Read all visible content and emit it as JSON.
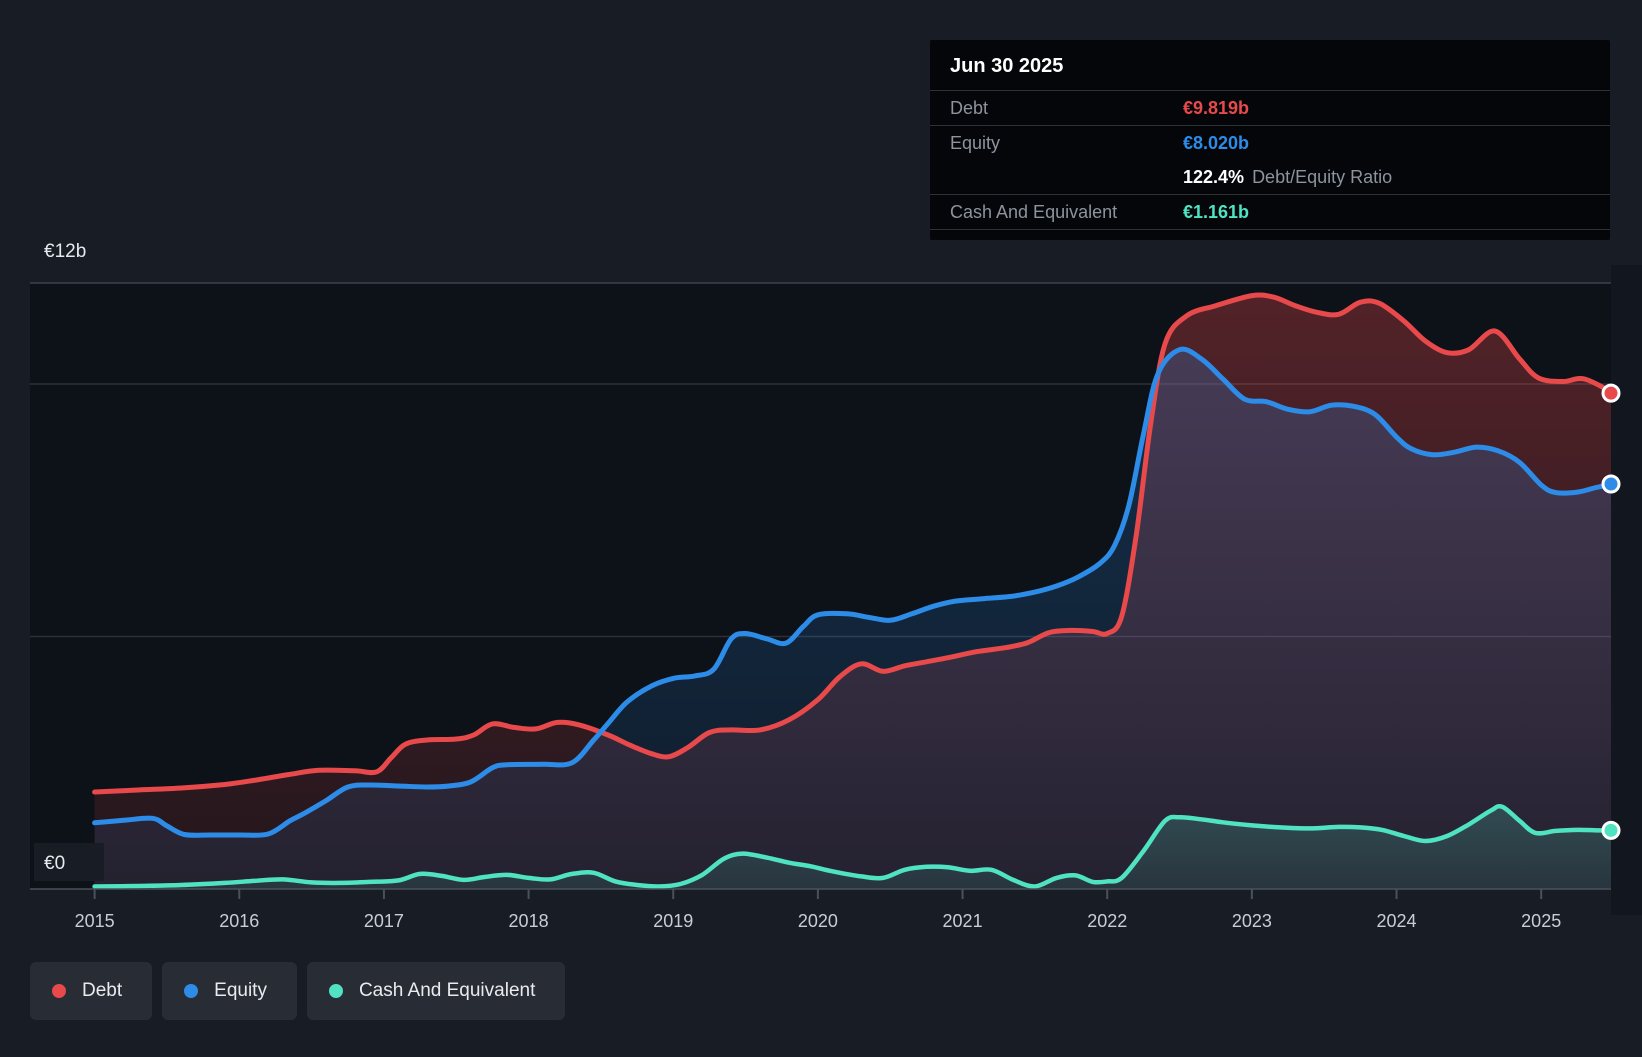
{
  "tooltip": {
    "date": "Jun 30 2025",
    "debt_label": "Debt",
    "debt_value": "€9.819b",
    "equity_label": "Equity",
    "equity_value": "€8.020b",
    "ratio_value": "122.4%",
    "ratio_label": "Debt/Equity Ratio",
    "cash_label": "Cash And Equivalent",
    "cash_value": "€1.161b"
  },
  "legend": {
    "items": [
      {
        "label": "Debt",
        "color": "#e8494b"
      },
      {
        "label": "Equity",
        "color": "#2d8ce8"
      },
      {
        "label": "Cash And Equivalent",
        "color": "#4fe3c2"
      }
    ]
  },
  "axis": {
    "y_top_label": "€12b",
    "y_zero_label": "€0",
    "years": [
      "2015",
      "2016",
      "2017",
      "2018",
      "2019",
      "2020",
      "2021",
      "2022",
      "2023",
      "2024",
      "2025"
    ]
  },
  "colors": {
    "debt": "#e8494b",
    "equity": "#2d8ce8",
    "cash": "#4fe3c2",
    "page_bg": "#171c25",
    "plot_bg": "#0d1118",
    "grid_major": "#3c434e",
    "grid_minor": "#2b313b",
    "axis_line": "#4a515a",
    "tick_text": "#c9ced5",
    "label_text": "#e6eaee"
  },
  "chart_data": {
    "type": "area",
    "unit": "€ billions",
    "x_range": [
      2015,
      2025.5
    ],
    "ylim": [
      0,
      12
    ],
    "y_gridlines": [
      12,
      10,
      5
    ],
    "legend_position": "bottom-left",
    "last_point_date": "Jun 30 2025",
    "series": [
      {
        "name": "Debt",
        "color": "#e8494b",
        "final_value": 9.819,
        "points": [
          [
            2015.0,
            1.92
          ],
          [
            2015.3,
            1.96
          ],
          [
            2015.6,
            2.0
          ],
          [
            2015.9,
            2.07
          ],
          [
            2016.1,
            2.15
          ],
          [
            2016.35,
            2.27
          ],
          [
            2016.55,
            2.35
          ],
          [
            2016.8,
            2.34
          ],
          [
            2016.95,
            2.32
          ],
          [
            2017.05,
            2.6
          ],
          [
            2017.15,
            2.87
          ],
          [
            2017.3,
            2.95
          ],
          [
            2017.5,
            2.97
          ],
          [
            2017.62,
            3.05
          ],
          [
            2017.75,
            3.27
          ],
          [
            2017.9,
            3.2
          ],
          [
            2018.05,
            3.17
          ],
          [
            2018.2,
            3.3
          ],
          [
            2018.35,
            3.25
          ],
          [
            2018.55,
            3.05
          ],
          [
            2018.7,
            2.85
          ],
          [
            2018.85,
            2.68
          ],
          [
            2018.97,
            2.62
          ],
          [
            2019.1,
            2.8
          ],
          [
            2019.25,
            3.1
          ],
          [
            2019.4,
            3.15
          ],
          [
            2019.6,
            3.15
          ],
          [
            2019.8,
            3.35
          ],
          [
            2020.0,
            3.75
          ],
          [
            2020.15,
            4.2
          ],
          [
            2020.3,
            4.46
          ],
          [
            2020.45,
            4.31
          ],
          [
            2020.6,
            4.42
          ],
          [
            2020.75,
            4.5
          ],
          [
            2020.9,
            4.58
          ],
          [
            2021.1,
            4.7
          ],
          [
            2021.3,
            4.78
          ],
          [
            2021.45,
            4.88
          ],
          [
            2021.6,
            5.08
          ],
          [
            2021.75,
            5.12
          ],
          [
            2021.9,
            5.1
          ],
          [
            2022.0,
            5.06
          ],
          [
            2022.1,
            5.4
          ],
          [
            2022.2,
            7.0
          ],
          [
            2022.3,
            9.2
          ],
          [
            2022.4,
            10.8
          ],
          [
            2022.55,
            11.35
          ],
          [
            2022.75,
            11.55
          ],
          [
            2023.0,
            11.75
          ],
          [
            2023.15,
            11.72
          ],
          [
            2023.3,
            11.55
          ],
          [
            2023.45,
            11.42
          ],
          [
            2023.6,
            11.38
          ],
          [
            2023.75,
            11.62
          ],
          [
            2023.88,
            11.6
          ],
          [
            2024.05,
            11.25
          ],
          [
            2024.2,
            10.85
          ],
          [
            2024.35,
            10.62
          ],
          [
            2024.5,
            10.68
          ],
          [
            2024.68,
            11.05
          ],
          [
            2024.85,
            10.5
          ],
          [
            2024.98,
            10.12
          ],
          [
            2025.15,
            10.05
          ],
          [
            2025.3,
            10.1
          ],
          [
            2025.497,
            9.819
          ]
        ]
      },
      {
        "name": "Equity",
        "color": "#2d8ce8",
        "final_value": 8.02,
        "points": [
          [
            2015.0,
            1.31
          ],
          [
            2015.2,
            1.36
          ],
          [
            2015.4,
            1.4
          ],
          [
            2015.5,
            1.25
          ],
          [
            2015.62,
            1.08
          ],
          [
            2015.8,
            1.07
          ],
          [
            2016.0,
            1.07
          ],
          [
            2016.2,
            1.09
          ],
          [
            2016.35,
            1.35
          ],
          [
            2016.45,
            1.5
          ],
          [
            2016.6,
            1.75
          ],
          [
            2016.75,
            2.02
          ],
          [
            2016.9,
            2.06
          ],
          [
            2017.1,
            2.04
          ],
          [
            2017.3,
            2.02
          ],
          [
            2017.45,
            2.04
          ],
          [
            2017.6,
            2.12
          ],
          [
            2017.75,
            2.4
          ],
          [
            2017.85,
            2.46
          ],
          [
            2018.1,
            2.47
          ],
          [
            2018.3,
            2.5
          ],
          [
            2018.45,
            2.95
          ],
          [
            2018.55,
            3.28
          ],
          [
            2018.68,
            3.7
          ],
          [
            2018.85,
            4.02
          ],
          [
            2019.0,
            4.17
          ],
          [
            2019.15,
            4.22
          ],
          [
            2019.28,
            4.35
          ],
          [
            2019.4,
            4.95
          ],
          [
            2019.5,
            5.06
          ],
          [
            2019.65,
            4.95
          ],
          [
            2019.78,
            4.87
          ],
          [
            2019.9,
            5.2
          ],
          [
            2020.0,
            5.43
          ],
          [
            2020.2,
            5.45
          ],
          [
            2020.35,
            5.38
          ],
          [
            2020.5,
            5.32
          ],
          [
            2020.65,
            5.45
          ],
          [
            2020.8,
            5.6
          ],
          [
            2020.95,
            5.7
          ],
          [
            2021.15,
            5.75
          ],
          [
            2021.35,
            5.8
          ],
          [
            2021.5,
            5.88
          ],
          [
            2021.65,
            6.0
          ],
          [
            2021.8,
            6.18
          ],
          [
            2021.95,
            6.45
          ],
          [
            2022.05,
            6.8
          ],
          [
            2022.15,
            7.6
          ],
          [
            2022.25,
            9.0
          ],
          [
            2022.35,
            10.2
          ],
          [
            2022.5,
            10.68
          ],
          [
            2022.65,
            10.5
          ],
          [
            2022.8,
            10.1
          ],
          [
            2022.95,
            9.7
          ],
          [
            2023.1,
            9.65
          ],
          [
            2023.25,
            9.5
          ],
          [
            2023.4,
            9.45
          ],
          [
            2023.55,
            9.58
          ],
          [
            2023.7,
            9.56
          ],
          [
            2023.85,
            9.4
          ],
          [
            2024.0,
            8.95
          ],
          [
            2024.1,
            8.72
          ],
          [
            2024.25,
            8.6
          ],
          [
            2024.4,
            8.65
          ],
          [
            2024.55,
            8.75
          ],
          [
            2024.7,
            8.68
          ],
          [
            2024.85,
            8.45
          ],
          [
            2025.0,
            8.0
          ],
          [
            2025.1,
            7.85
          ],
          [
            2025.25,
            7.86
          ],
          [
            2025.38,
            7.95
          ],
          [
            2025.497,
            8.02
          ]
        ]
      },
      {
        "name": "Cash And Equivalent",
        "color": "#4fe3c2",
        "final_value": 1.161,
        "points": [
          [
            2015.0,
            0.05
          ],
          [
            2015.3,
            0.06
          ],
          [
            2015.6,
            0.08
          ],
          [
            2015.9,
            0.12
          ],
          [
            2016.1,
            0.16
          ],
          [
            2016.3,
            0.19
          ],
          [
            2016.5,
            0.13
          ],
          [
            2016.7,
            0.12
          ],
          [
            2016.9,
            0.14
          ],
          [
            2017.1,
            0.17
          ],
          [
            2017.25,
            0.3
          ],
          [
            2017.4,
            0.26
          ],
          [
            2017.55,
            0.18
          ],
          [
            2017.7,
            0.24
          ],
          [
            2017.85,
            0.28
          ],
          [
            2018.0,
            0.22
          ],
          [
            2018.15,
            0.19
          ],
          [
            2018.3,
            0.3
          ],
          [
            2018.45,
            0.32
          ],
          [
            2018.6,
            0.15
          ],
          [
            2018.75,
            0.08
          ],
          [
            2018.9,
            0.05
          ],
          [
            2019.05,
            0.1
          ],
          [
            2019.2,
            0.28
          ],
          [
            2019.35,
            0.6
          ],
          [
            2019.48,
            0.7
          ],
          [
            2019.65,
            0.62
          ],
          [
            2019.8,
            0.52
          ],
          [
            2019.95,
            0.45
          ],
          [
            2020.1,
            0.35
          ],
          [
            2020.3,
            0.25
          ],
          [
            2020.45,
            0.22
          ],
          [
            2020.6,
            0.38
          ],
          [
            2020.75,
            0.44
          ],
          [
            2020.9,
            0.43
          ],
          [
            2021.05,
            0.36
          ],
          [
            2021.2,
            0.38
          ],
          [
            2021.35,
            0.18
          ],
          [
            2021.5,
            0.05
          ],
          [
            2021.65,
            0.22
          ],
          [
            2021.78,
            0.27
          ],
          [
            2021.9,
            0.14
          ],
          [
            2022.0,
            0.15
          ],
          [
            2022.1,
            0.22
          ],
          [
            2022.25,
            0.75
          ],
          [
            2022.4,
            1.35
          ],
          [
            2022.5,
            1.42
          ],
          [
            2022.65,
            1.38
          ],
          [
            2022.8,
            1.32
          ],
          [
            2023.0,
            1.26
          ],
          [
            2023.2,
            1.22
          ],
          [
            2023.4,
            1.2
          ],
          [
            2023.6,
            1.23
          ],
          [
            2023.75,
            1.22
          ],
          [
            2023.9,
            1.17
          ],
          [
            2024.05,
            1.05
          ],
          [
            2024.2,
            0.95
          ],
          [
            2024.35,
            1.05
          ],
          [
            2024.5,
            1.28
          ],
          [
            2024.65,
            1.55
          ],
          [
            2024.73,
            1.63
          ],
          [
            2024.85,
            1.35
          ],
          [
            2024.96,
            1.11
          ],
          [
            2025.1,
            1.15
          ],
          [
            2025.25,
            1.17
          ],
          [
            2025.4,
            1.16
          ],
          [
            2025.497,
            1.161
          ]
        ]
      }
    ]
  }
}
